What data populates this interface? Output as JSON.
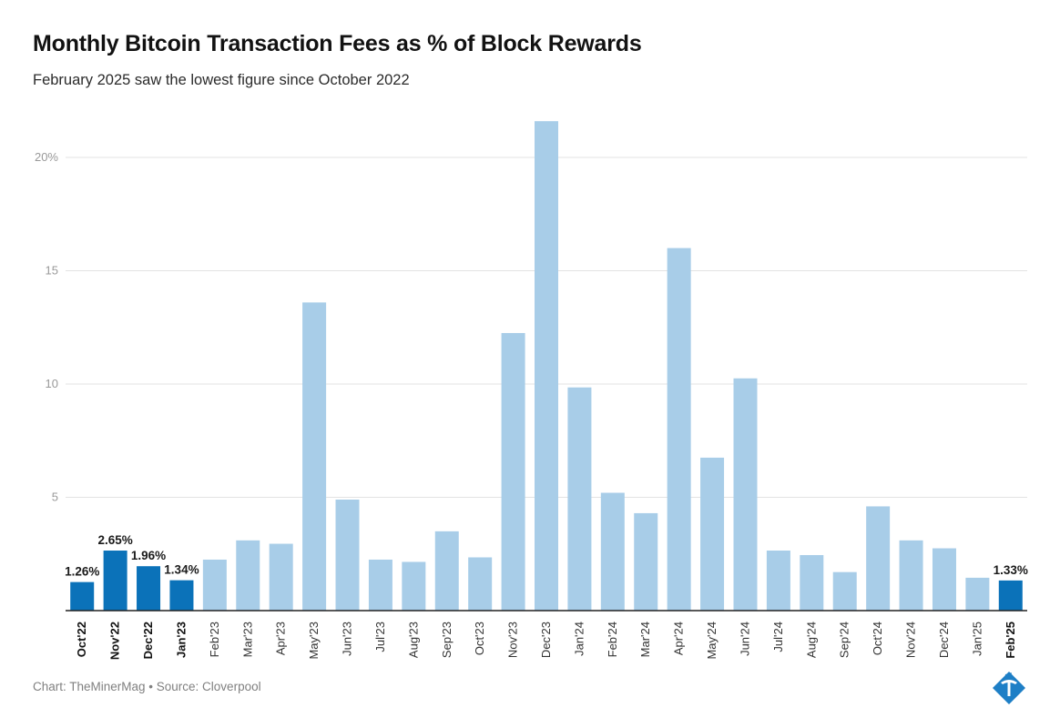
{
  "header": {
    "title": "Monthly Bitcoin Transaction Fees as % of Block Rewards",
    "subtitle": "February 2025 saw the lowest figure since October 2022"
  },
  "footer": {
    "credit": "Chart: TheMinerMag • Source: Cloverpool"
  },
  "logo": {
    "icon": "pickaxe-diamond-logo-icon"
  },
  "colors": {
    "highlight": "#0b72b9",
    "base": "#a8cde8",
    "grid": "#e3e3e3",
    "axis": "#222222",
    "tick": "#999999"
  },
  "chart_data": {
    "type": "bar",
    "categories": [
      "Oct'22",
      "Nov'22",
      "Dec'22",
      "Jan'23",
      "Feb'23",
      "Mar'23",
      "Apr'23",
      "May'23",
      "Jun'23",
      "Jul'23",
      "Aug'23",
      "Sep'23",
      "Oct'23",
      "Nov'23",
      "Dec'23",
      "Jan'24",
      "Feb'24",
      "Mar'24",
      "Apr'24",
      "May'24",
      "Jun'24",
      "Jul'24",
      "Aug'24",
      "Sep'24",
      "Oct'24",
      "Nov'24",
      "Dec'24",
      "Jan'25",
      "Feb'25"
    ],
    "values": [
      1.26,
      2.65,
      1.96,
      1.34,
      2.25,
      3.1,
      2.95,
      13.6,
      4.9,
      2.25,
      2.15,
      3.5,
      2.35,
      12.25,
      21.6,
      9.85,
      5.2,
      4.3,
      16.0,
      6.75,
      10.25,
      2.65,
      2.45,
      1.7,
      4.6,
      3.1,
      2.75,
      1.45,
      1.33
    ],
    "highlighted": [
      0,
      1,
      2,
      3,
      28
    ],
    "data_labels": {
      "0": "1.26%",
      "1": "2.65%",
      "2": "1.96%",
      "3": "1.34%",
      "28": "1.33%"
    },
    "y_ticks": [
      5,
      10,
      15,
      20
    ],
    "y_tick_labels": [
      "5",
      "10",
      "15",
      "20%"
    ],
    "ylim": [
      0,
      22
    ],
    "xlabel": "",
    "ylabel": "",
    "grid": true
  }
}
